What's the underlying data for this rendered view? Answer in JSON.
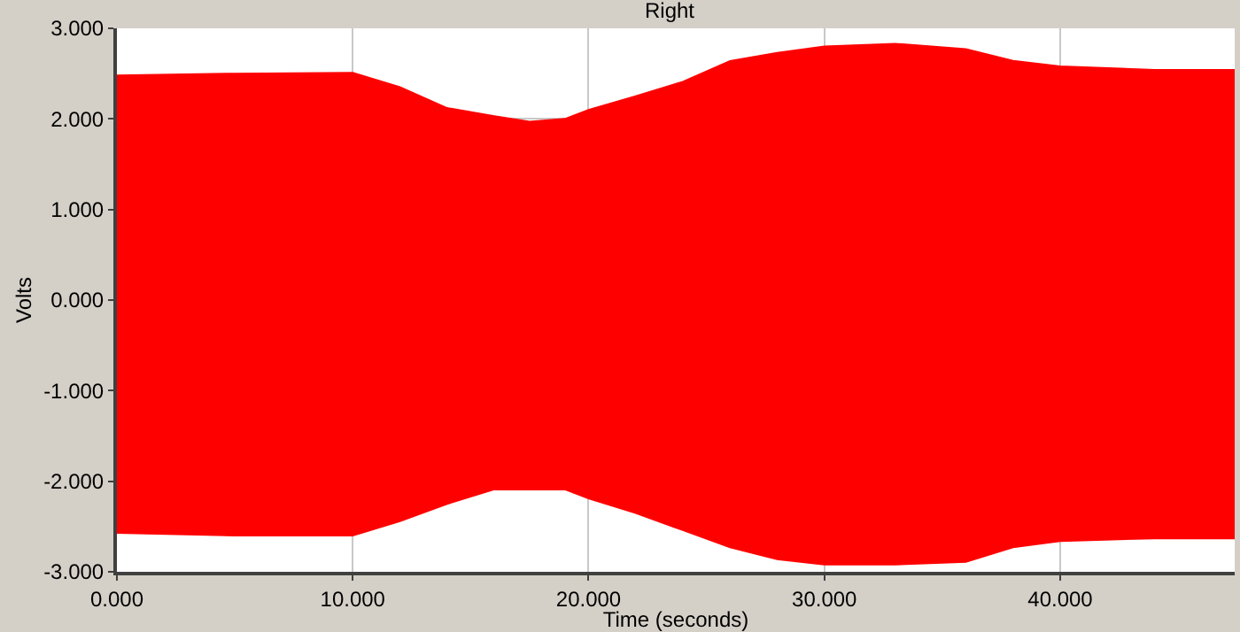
{
  "chart_data": {
    "type": "area",
    "title": "Right",
    "xlabel": "Time (seconds)",
    "ylabel": "Volts",
    "x": [
      0,
      5,
      10,
      12,
      14,
      16,
      17.5,
      19,
      20,
      22,
      24,
      26,
      28,
      30,
      33,
      36,
      38,
      40,
      44,
      47.4
    ],
    "series": [
      {
        "color": "#ff0000",
        "values": [
          2.48,
          2.5,
          2.51,
          2.35,
          2.12,
          2.03,
          1.97,
          2.0,
          2.1,
          2.25,
          2.41,
          2.64,
          2.73,
          2.8,
          2.83,
          2.77,
          2.64,
          2.58,
          2.54,
          2.54
        ]
      },
      {
        "color": "#ff0000",
        "values": [
          -2.57,
          -2.6,
          -2.6,
          -2.44,
          -2.25,
          -2.09,
          -2.09,
          -2.09,
          -2.19,
          -2.35,
          -2.54,
          -2.73,
          -2.86,
          -2.92,
          -2.92,
          -2.89,
          -2.73,
          -2.66,
          -2.63,
          -2.63
        ]
      }
    ],
    "xlim": [
      0,
      47.4
    ],
    "xticks": [
      {
        "value": 0,
        "label": "0.000"
      },
      {
        "value": 10,
        "label": "10.000"
      },
      {
        "value": 20,
        "label": "20.000"
      },
      {
        "value": 30,
        "label": "30.000"
      },
      {
        "value": 40,
        "label": "40.000"
      }
    ],
    "ylim": [
      -3,
      3
    ],
    "yticks": [
      {
        "value": -3,
        "label": "-3.000"
      },
      {
        "value": -2,
        "label": "-2.000"
      },
      {
        "value": -1,
        "label": "-1.000"
      },
      {
        "value": 0,
        "label": "0.000"
      },
      {
        "value": 1,
        "label": "1.000"
      },
      {
        "value": 2,
        "label": "2.000"
      },
      {
        "value": 3,
        "label": "3.000"
      }
    ],
    "grid": true
  }
}
